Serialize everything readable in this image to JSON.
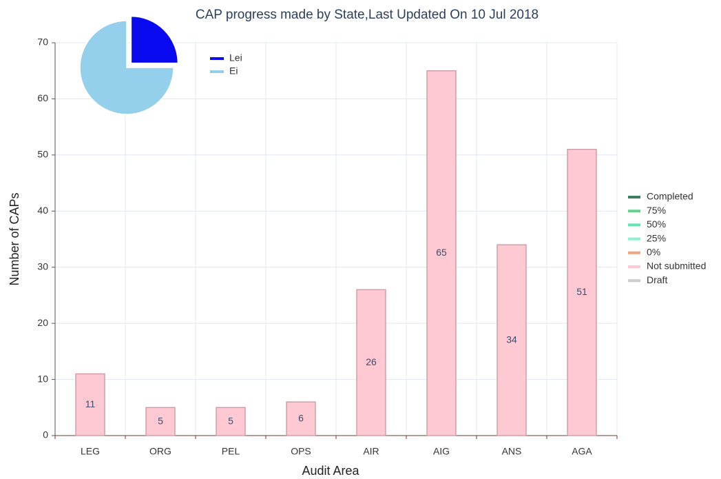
{
  "chart_data": [
    {
      "type": "bar",
      "title": "CAP progress made by State,Last Updated On 10 Jul 2018",
      "x_label": "Audit Area",
      "y_label": "Number of CAPs",
      "categories": [
        "LEG",
        "ORG",
        "PEL",
        "OPS",
        "AIR",
        "AIG",
        "ANS",
        "AGA"
      ],
      "stacked": true,
      "grid": true,
      "legend": "right",
      "series": [
        {
          "name": "Completed",
          "color": "#3d7f62",
          "values": [
            0,
            0,
            0,
            0,
            0,
            0,
            0,
            0
          ]
        },
        {
          "name": "75%",
          "color": "#5fd48f",
          "values": [
            0,
            0,
            0,
            0,
            0,
            0,
            0,
            0
          ]
        },
        {
          "name": "50%",
          "color": "#5ee6b4",
          "values": [
            0,
            0,
            0,
            0,
            0,
            0,
            0,
            0
          ]
        },
        {
          "name": "25%",
          "color": "#86f3d2",
          "values": [
            0,
            0,
            0,
            0,
            0,
            0,
            0,
            0
          ]
        },
        {
          "name": "0%",
          "color": "#f5a27e",
          "values": [
            0,
            0,
            0,
            0,
            0,
            0,
            0,
            0
          ]
        },
        {
          "name": "Not submitted",
          "color": "#ffc9d3",
          "values": [
            11,
            5,
            5,
            6,
            26,
            65,
            34,
            51
          ]
        },
        {
          "name": "Draft",
          "color": "#cccccc",
          "values": [
            0,
            0,
            0,
            0,
            0,
            0,
            0,
            0
          ]
        }
      ],
      "ylim": [
        0,
        70
      ],
      "yticks": [
        0,
        10,
        20,
        30,
        40,
        50,
        60,
        70
      ]
    },
    {
      "type": "pie",
      "categories": [
        "Lei",
        "Ei"
      ],
      "values": [
        25,
        75
      ],
      "colors": [
        "#0a0af0",
        "#94d0ec"
      ],
      "exploded": "Lei"
    }
  ]
}
